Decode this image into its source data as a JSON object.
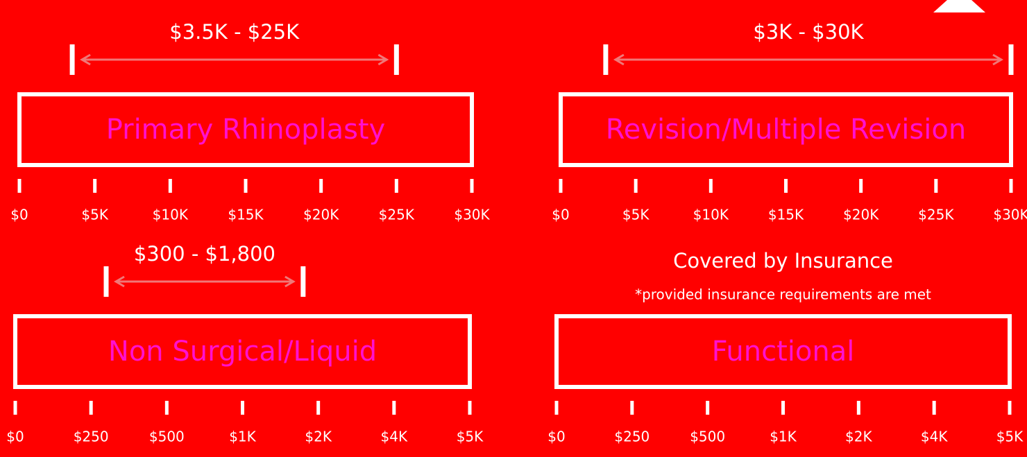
{
  "panels": [
    {
      "title": "Primary Rhinoplasty",
      "range_label": "$3.5K - $25K",
      "range": [
        3500,
        25000
      ],
      "ticks": [
        {
          "value": 0,
          "label": "$0"
        },
        {
          "value": 5000,
          "label": "$5K"
        },
        {
          "value": 10000,
          "label": "$10K"
        },
        {
          "value": 15000,
          "label": "$15K"
        },
        {
          "value": 20000,
          "label": "$20K"
        },
        {
          "value": 25000,
          "label": "$25K"
        },
        {
          "value": 30000,
          "label": "$30K"
        }
      ]
    },
    {
      "title": "Revision/Multiple Revision",
      "range_label": "$3K - $30K",
      "range": [
        3000,
        30000
      ],
      "ticks": [
        {
          "value": 0,
          "label": "$0"
        },
        {
          "value": 5000,
          "label": "$5K"
        },
        {
          "value": 10000,
          "label": "$10K"
        },
        {
          "value": 15000,
          "label": "$15K"
        },
        {
          "value": 20000,
          "label": "$20K"
        },
        {
          "value": 25000,
          "label": "$25K"
        },
        {
          "value": 30000,
          "label": "$30K"
        }
      ]
    },
    {
      "title": "Non Surgical/Liquid",
      "range_label": "$300 - $1,800",
      "range": [
        300,
        1800
      ],
      "ticks": [
        {
          "value": 0,
          "label": "$0"
        },
        {
          "value": 250,
          "label": "$250"
        },
        {
          "value": 500,
          "label": "$500"
        },
        {
          "value": 1000,
          "label": "$1K"
        },
        {
          "value": 2000,
          "label": "$2K"
        },
        {
          "value": 4000,
          "label": "$4K"
        },
        {
          "value": 5000,
          "label": "$5K"
        }
      ]
    },
    {
      "title": "Functional",
      "heading": "Covered by Insurance",
      "note": "*provided insurance requirements are met",
      "ticks": [
        {
          "value": 0,
          "label": "$0"
        },
        {
          "value": 250,
          "label": "$250"
        },
        {
          "value": 500,
          "label": "$500"
        },
        {
          "value": 1000,
          "label": "$1K"
        },
        {
          "value": 2000,
          "label": "$2K"
        },
        {
          "value": 4000,
          "label": "$4K"
        },
        {
          "value": 5000,
          "label": "$5K"
        }
      ]
    }
  ]
}
